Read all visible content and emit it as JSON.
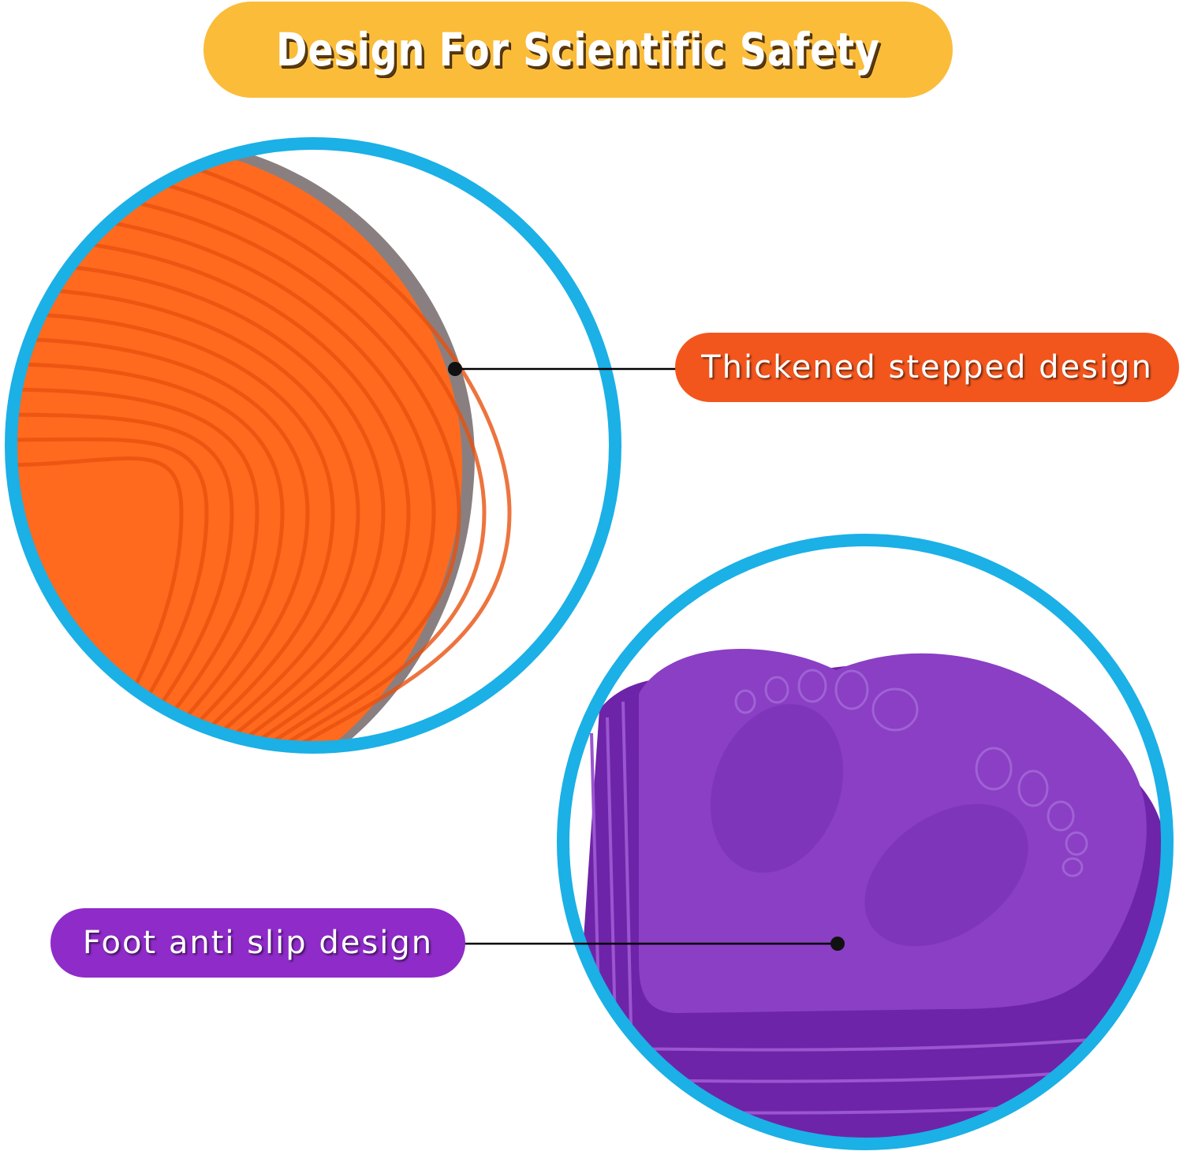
{
  "title": "Design For Scientific Safety",
  "callouts": {
    "top": {
      "label": "Thickened stepped design",
      "color": "#F2561D"
    },
    "bottom": {
      "label": "Foot anti slip design",
      "color": "#8E2BC9"
    }
  },
  "colors": {
    "title_pill": "#FBBC3A",
    "circle_border": "#1BB0E6",
    "product_orange": "#FF6A1E",
    "product_purple": "#8A3FC4"
  }
}
